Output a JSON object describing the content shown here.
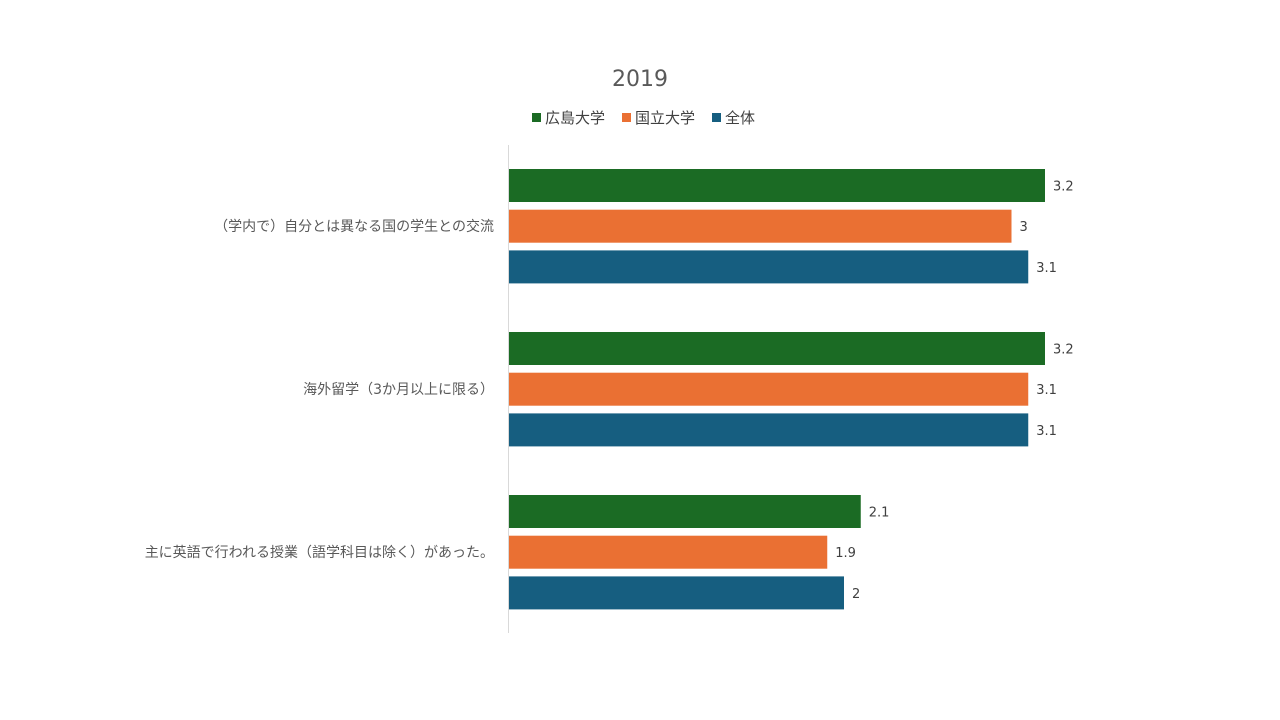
{
  "chart_data": {
    "type": "bar",
    "orientation": "horizontal",
    "title": "2019",
    "categories": [
      "（学内で）自分とは異なる国の学生との交流",
      "海外留学（3か月以上に限る）",
      "主に英語で行われる授業（語学科目は除く）があった。"
    ],
    "series": [
      {
        "name": "広島大学",
        "color": "#1b6b24",
        "values": [
          3.2,
          3.2,
          2.1
        ]
      },
      {
        "name": "国立大学",
        "color": "#ea7033",
        "values": [
          3,
          3.1,
          1.9
        ]
      },
      {
        "name": "全体",
        "color": "#165e80",
        "values": [
          3.1,
          3.1,
          2
        ]
      }
    ],
    "xlim": [
      0,
      3.6
    ],
    "grid": false,
    "legend_position": "top",
    "data_labels": true
  }
}
